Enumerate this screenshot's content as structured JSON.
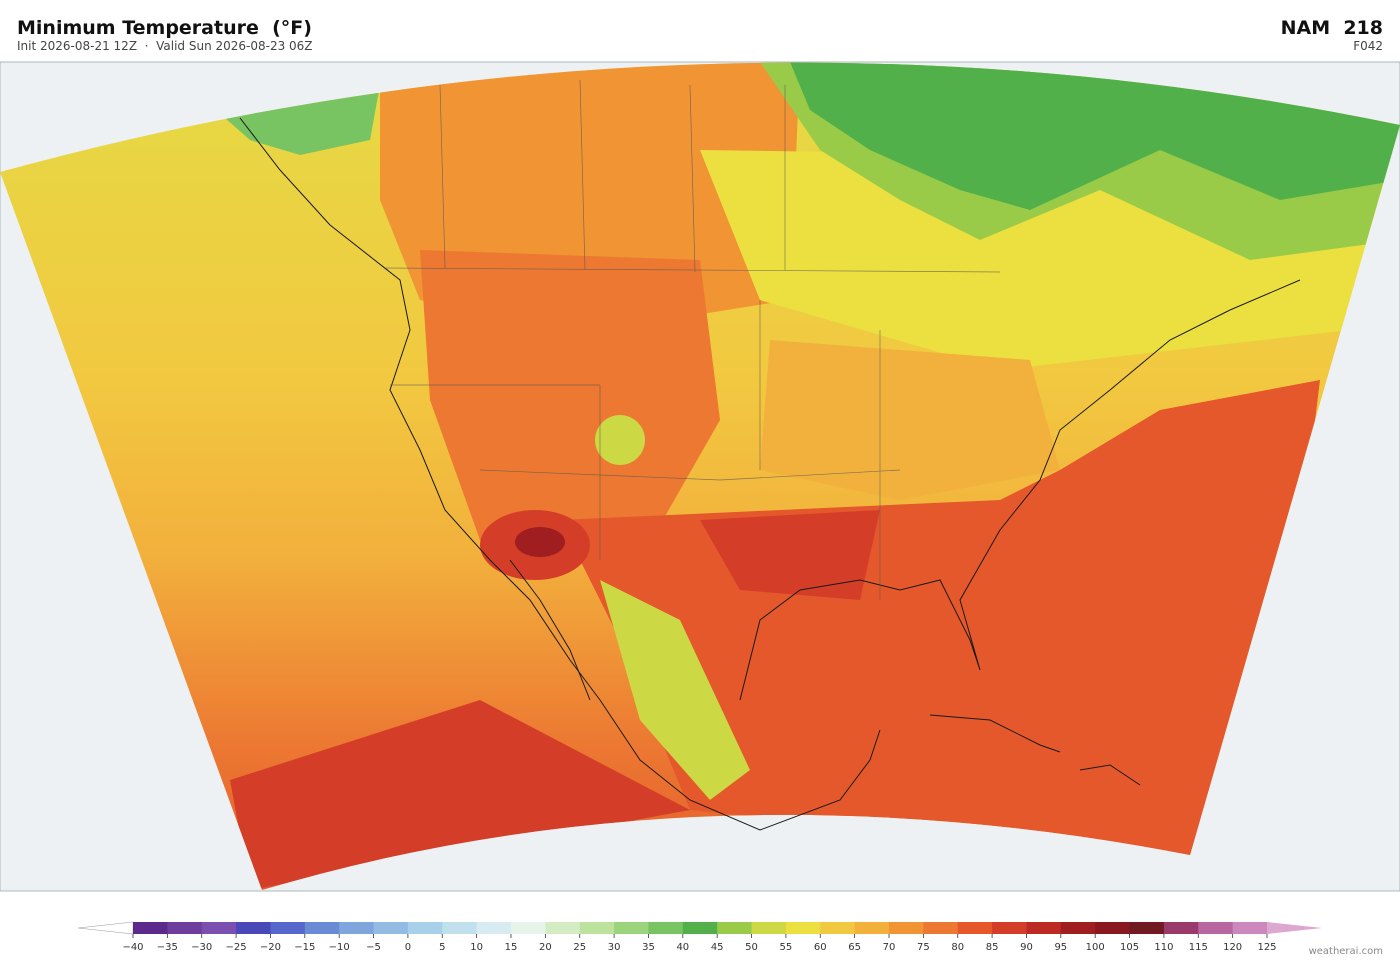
{
  "header": {
    "title": "Minimum Temperature  (°F)",
    "subtitle": "Init 2026-08-21 12Z  ·  Valid Sun 2026-08-23 06Z",
    "model": "NAM  218",
    "forecast_hour": "F042"
  },
  "colorbar": {
    "ticks": [
      {
        "value": -40,
        "label": "−40"
      },
      {
        "value": -35,
        "label": "−35"
      },
      {
        "value": -30,
        "label": "−30"
      },
      {
        "value": -25,
        "label": "−25"
      },
      {
        "value": -20,
        "label": "−20"
      },
      {
        "value": -15,
        "label": "−15"
      },
      {
        "value": -10,
        "label": "−10"
      },
      {
        "value": -5,
        "label": "−5"
      },
      0,
      5,
      10,
      15,
      20,
      25,
      30,
      35,
      40,
      45,
      50,
      55,
      60,
      65,
      70,
      75,
      80,
      85,
      90,
      95,
      100,
      105,
      110,
      115,
      120,
      125
    ],
    "colors": [
      "#ffffff",
      "#5b2a8c",
      "#6e3c9c",
      "#7a4fb0",
      "#4848b8",
      "#5566cc",
      "#6a8ad6",
      "#7ea6dc",
      "#92bce4",
      "#a8d0ea",
      "#c0e0ee",
      "#d6ecf2",
      "#e6f4ea",
      "#d4ecc4",
      "#bce29e",
      "#9cd47e",
      "#78c462",
      "#52b04a",
      "#9acb48",
      "#ccd844",
      "#ece040",
      "#f2c840",
      "#f2b03c",
      "#f09434",
      "#ec7832",
      "#e4582c",
      "#d43e28",
      "#bc2a24",
      "#a01e20",
      "#8a1820",
      "#701a22",
      "#9a3a6a",
      "#b866a0",
      "#cc88bc",
      "#dca8d0"
    ]
  },
  "footer": {
    "credit": "weatherai.com"
  }
}
